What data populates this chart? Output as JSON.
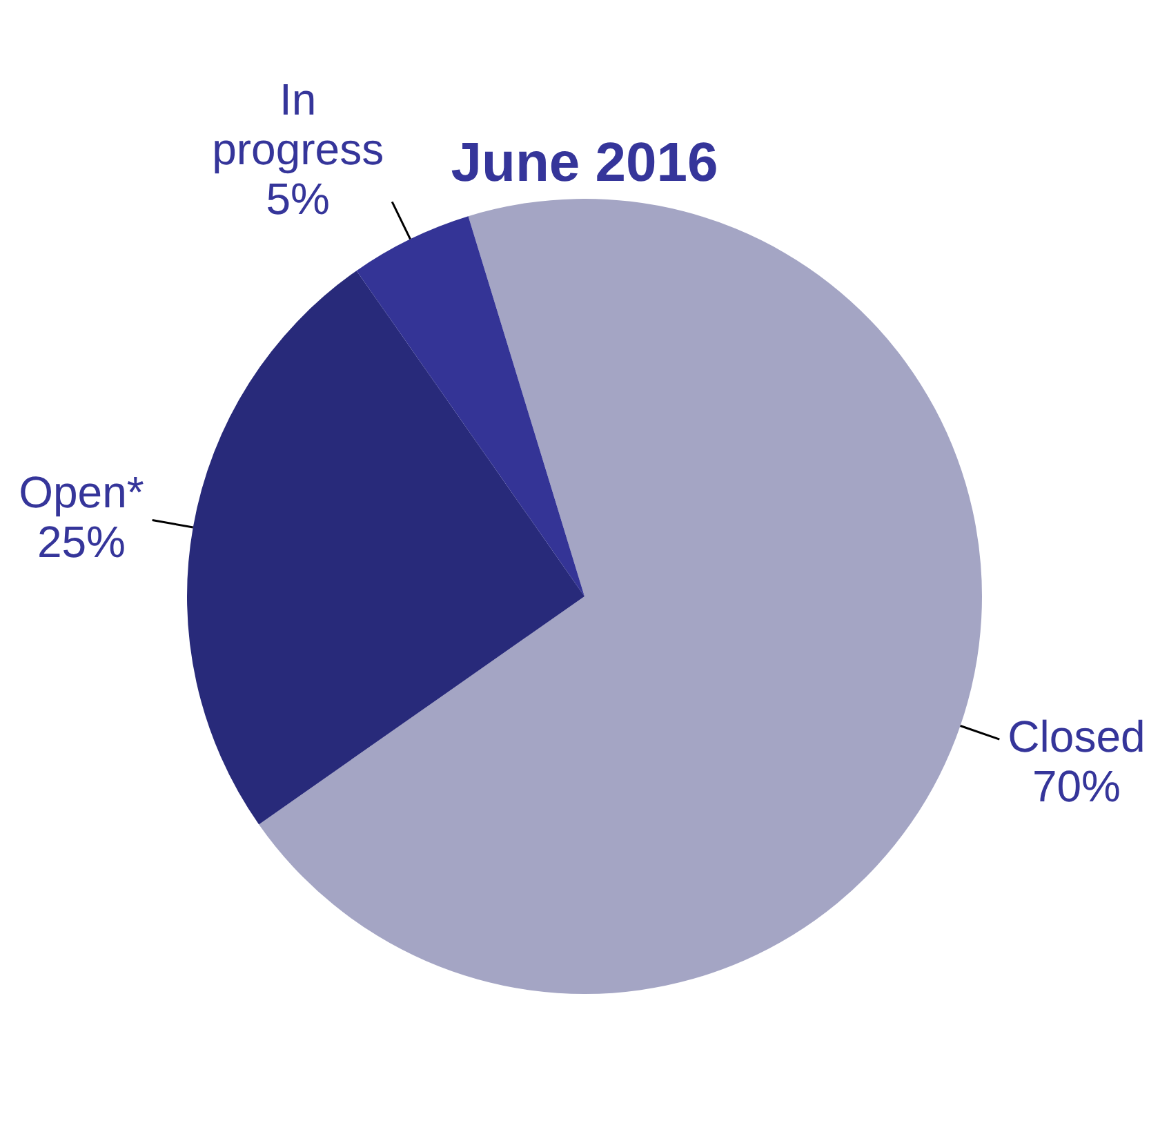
{
  "chart_data": {
    "type": "pie",
    "title": "June 2016",
    "categories": [
      "Closed",
      "Open*",
      "In progress"
    ],
    "values": [
      70,
      25,
      5
    ],
    "colors": [
      "#a4a5c4",
      "#282a7a",
      "#343496"
    ],
    "value_labels": [
      "70%",
      "25%",
      "5%"
    ],
    "legend": false
  }
}
